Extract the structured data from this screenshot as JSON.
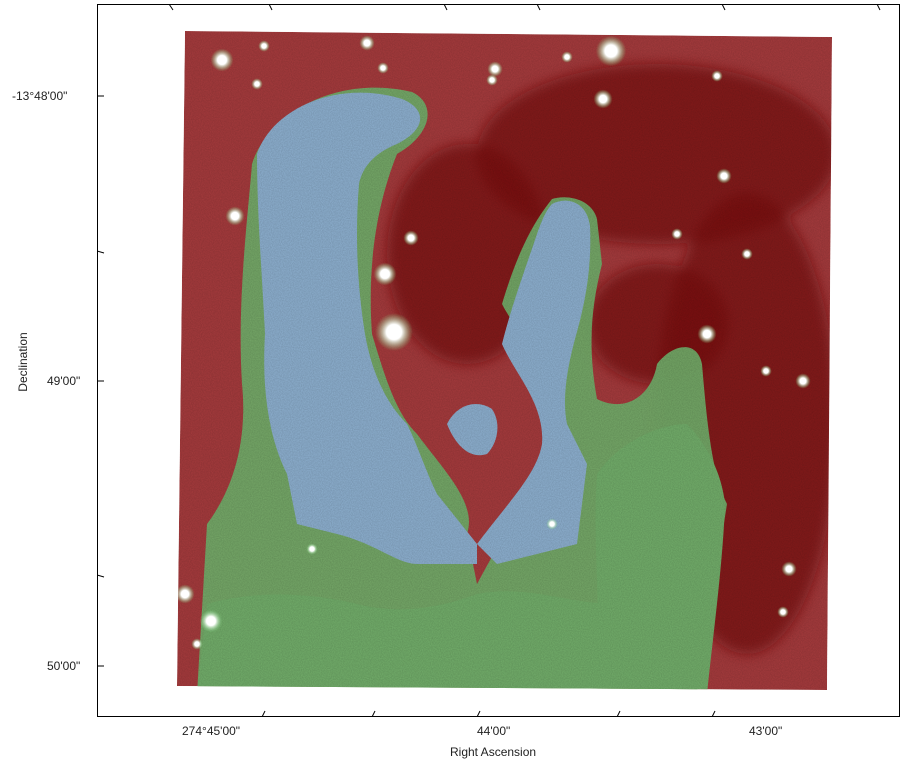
{
  "figure": {
    "x_axis": {
      "label": "Right Ascension",
      "ticks": [
        "274°45'00\"",
        "44'00\"",
        "43'00\""
      ]
    },
    "y_axis": {
      "label": "Declination",
      "ticks": [
        "-13°48'00\"",
        "49'00\"",
        "50'00\""
      ]
    },
    "colors": {
      "background_red": "#a83c3e",
      "dark_red": "#7a0f12",
      "pillar_blue": "#8fb2d2",
      "pillar_green": "#74b06c",
      "star": "#ffffff"
    }
  }
}
